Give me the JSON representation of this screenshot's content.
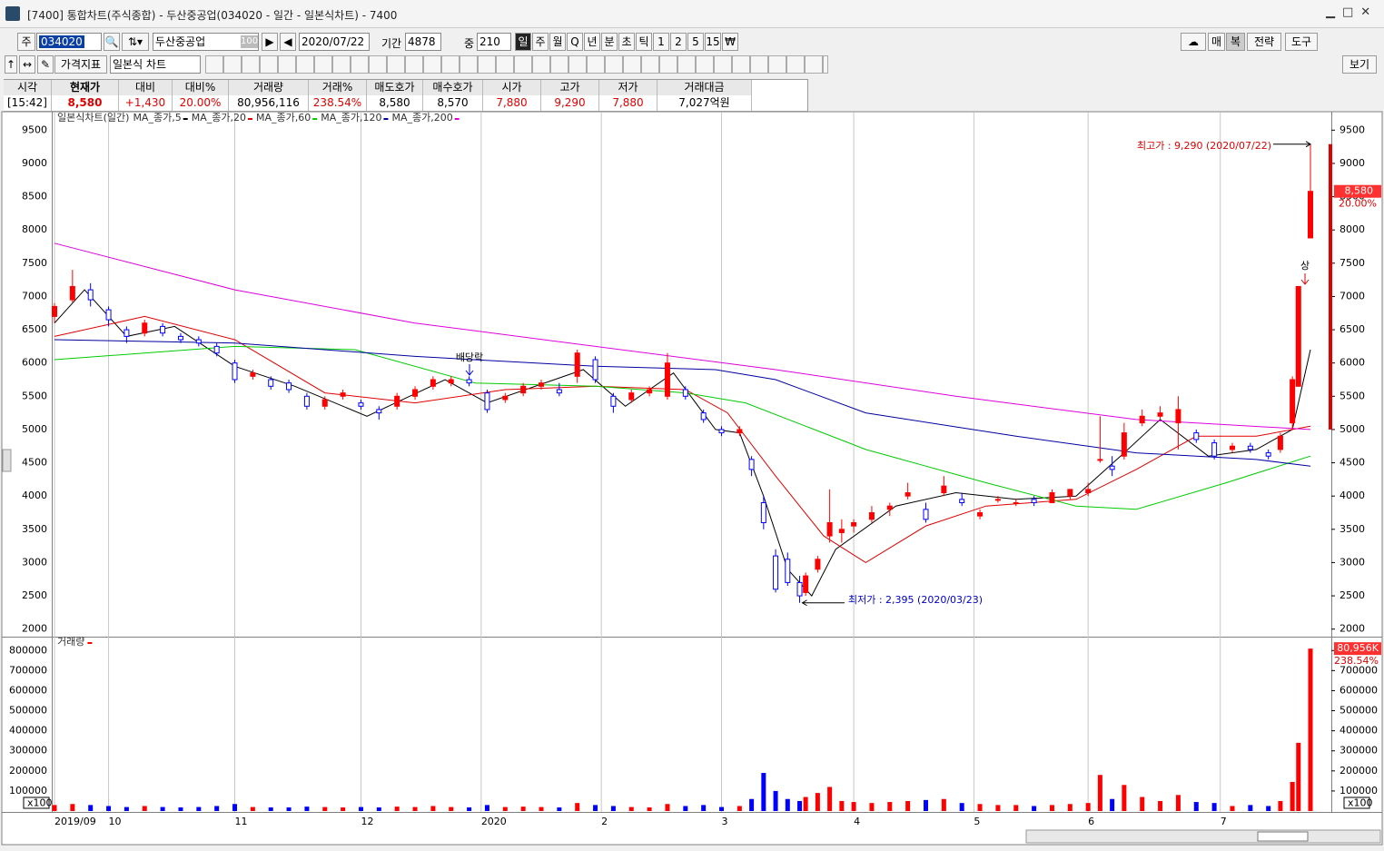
{
  "window": {
    "title": "[7400] 통합차트(주식종합) - 두산중공업(034020 - 일간 - 일본식차트) - 7400"
  },
  "toolbar": {
    "market": "주",
    "code": "034020",
    "name": "두산중공업",
    "zoom": "100",
    "date": "2020/07/22",
    "period_label": "기간",
    "period": "4878",
    "count_label": "중",
    "count": "210",
    "intervals": [
      "일",
      "주",
      "월",
      "Q",
      "년",
      "분",
      "초",
      "틱",
      "1",
      "2",
      "5",
      "15",
      "₩"
    ],
    "right_buttons": [
      "매",
      "복",
      "전략",
      "도구"
    ],
    "indicator_button": "가격지표",
    "chart_style": "일본식 차트",
    "view_button": "보기"
  },
  "quote": {
    "headers": [
      "시각",
      "현재가",
      "대비",
      "대비%",
      "거래량",
      "거래%",
      "매도호가",
      "매수호가",
      "시가",
      "고가",
      "저가",
      "거래대금"
    ],
    "values": [
      "[15:42]",
      "8,580",
      "+1,430",
      "20.00%",
      "80,956,116",
      "238.54%",
      "8,580",
      "8,570",
      "7,880",
      "9,290",
      "7,880",
      "7,027억원"
    ]
  },
  "chart_data": {
    "type": "candlestick",
    "title": "일본식차트(일간)",
    "xlim": [
      0,
      209
    ],
    "xticks": [
      {
        "value": 0,
        "label": "2019/09"
      },
      {
        "value": 9,
        "label": "10"
      },
      {
        "value": 30,
        "label": "11"
      },
      {
        "value": 51,
        "label": "12"
      },
      {
        "value": 71,
        "label": "2020"
      },
      {
        "value": 91,
        "label": "2"
      },
      {
        "value": 111,
        "label": "3"
      },
      {
        "value": 133,
        "label": "4"
      },
      {
        "value": 153,
        "label": "5"
      },
      {
        "value": 172,
        "label": "6"
      },
      {
        "value": 194,
        "label": "7"
      }
    ],
    "ylim": [
      1900,
      9750
    ],
    "yticks": [
      2000,
      2500,
      3000,
      3500,
      4000,
      4500,
      5000,
      5500,
      6000,
      6500,
      7000,
      7500,
      8000,
      8500,
      9000,
      9500
    ],
    "up_color": "#ff0000",
    "down_color": "#0000ff",
    "candles": {
      "x": [
        0,
        3,
        6,
        9,
        12,
        15,
        18,
        21,
        24,
        27,
        30,
        33,
        36,
        39,
        42,
        45,
        48,
        51,
        54,
        57,
        60,
        63,
        66,
        69,
        72,
        75,
        78,
        81,
        84,
        87,
        90,
        93,
        96,
        99,
        102,
        105,
        108,
        111,
        114,
        116,
        118,
        120,
        122,
        124,
        125,
        127,
        129,
        131,
        133,
        136,
        139,
        142,
        145,
        148,
        151,
        154,
        157,
        160,
        163,
        166,
        169,
        172,
        174,
        176,
        178,
        181,
        184,
        187,
        190,
        193,
        196,
        199,
        202,
        204,
        206,
        207,
        209
      ],
      "open": [
        6700,
        6950,
        7100,
        6800,
        6500,
        6450,
        6550,
        6400,
        6350,
        6250,
        6000,
        5800,
        5750,
        5700,
        5500,
        5350,
        5500,
        5400,
        5300,
        5350,
        5500,
        5650,
        5700,
        5750,
        5550,
        5450,
        5550,
        5650,
        5600,
        5800,
        6050,
        5500,
        5450,
        5550,
        5500,
        5600,
        5250,
        5000,
        4950,
        4550,
        3900,
        3100,
        3050,
        2700,
        2550,
        2900,
        3400,
        3450,
        3550,
        3650,
        3800,
        4000,
        3800,
        4050,
        3950,
        3700,
        3950,
        3900,
        3950,
        3900,
        4000,
        4050,
        4550,
        4450,
        4600,
        5100,
        5200,
        5100,
        4950,
        4800,
        4700,
        4750,
        4650,
        4700,
        5100,
        5650,
        7880
      ],
      "high": [
        6900,
        7400,
        7200,
        6850,
        6550,
        6650,
        6600,
        6450,
        6400,
        6300,
        6050,
        5900,
        5800,
        5750,
        5550,
        5500,
        5600,
        5450,
        5350,
        5550,
        5650,
        5800,
        5800,
        5800,
        5600,
        5550,
        5700,
        5750,
        5700,
        6200,
        6100,
        5550,
        5600,
        5650,
        6150,
        5650,
        5300,
        5050,
        5050,
        4600,
        4000,
        3200,
        3150,
        2800,
        2850,
        3100,
        4100,
        3650,
        3650,
        3850,
        3900,
        4200,
        3900,
        4300,
        4050,
        3800,
        4000,
        3950,
        4000,
        4100,
        4100,
        4200,
        5200,
        4600,
        5100,
        5300,
        5350,
        5500,
        5000,
        4850,
        4800,
        4800,
        4700,
        4950,
        5800,
        7150,
        9290
      ],
      "low": [
        6600,
        6900,
        6850,
        6550,
        6300,
        6400,
        6400,
        6300,
        6250,
        6100,
        5700,
        5750,
        5600,
        5550,
        5300,
        5300,
        5450,
        5300,
        5150,
        5300,
        5450,
        5600,
        5650,
        5650,
        5250,
        5400,
        5500,
        5600,
        5500,
        5700,
        5700,
        5250,
        5400,
        5500,
        5450,
        5450,
        5100,
        4900,
        4900,
        4300,
        3500,
        2550,
        2650,
        2395,
        2500,
        2850,
        3300,
        3300,
        3450,
        3600,
        3700,
        3950,
        3600,
        4000,
        3850,
        3650,
        3900,
        3850,
        3850,
        3900,
        3950,
        4000,
        4500,
        4300,
        4550,
        5050,
        5150,
        4700,
        4800,
        4550,
        4650,
        4650,
        4550,
        4650,
        5000,
        5650,
        7880
      ],
      "close": [
        6850,
        7150,
        6950,
        6650,
        6400,
        6600,
        6450,
        6350,
        6300,
        6150,
        5750,
        5850,
        5650,
        5600,
        5350,
        5450,
        5550,
        5350,
        5250,
        5500,
        5600,
        5750,
        5750,
        5700,
        5300,
        5500,
        5650,
        5700,
        5550,
        6150,
        5750,
        5350,
        5550,
        5600,
        6000,
        5500,
        5150,
        4950,
        5000,
        4400,
        3600,
        2600,
        2700,
        2500,
        2800,
        3050,
        3600,
        3500,
        3600,
        3750,
        3850,
        4050,
        3650,
        4150,
        3900,
        3750,
        3950,
        3900,
        3900,
        4050,
        4100,
        4100,
        4550,
        4400,
        4950,
        5200,
        5250,
        5300,
        4850,
        4600,
        4750,
        4700,
        4600,
        4900,
        5750,
        7150,
        8580
      ]
    },
    "moving_averages": [
      {
        "name": "MA_종가,5",
        "color": "#000000",
        "x": [
          0,
          5,
          12,
          20,
          30,
          40,
          52,
          65,
          72,
          88,
          95,
          103,
          110,
          114,
          118,
          122,
          126,
          130,
          140,
          150,
          160,
          170,
          178,
          184,
          192,
          200,
          206,
          209
        ],
        "values": [
          6600,
          7100,
          6400,
          6550,
          5950,
          5650,
          5200,
          5750,
          5400,
          5900,
          5350,
          5850,
          5000,
          4950,
          4000,
          2900,
          2500,
          3200,
          3850,
          4050,
          3950,
          4000,
          4650,
          5150,
          4600,
          4700,
          5000,
          6200
        ]
      },
      {
        "name": "MA_종가,20",
        "color": "#e00000",
        "x": [
          0,
          15,
          30,
          45,
          60,
          75,
          90,
          105,
          112,
          120,
          128,
          135,
          145,
          155,
          170,
          180,
          190,
          200,
          209
        ],
        "values": [
          6400,
          6700,
          6350,
          5550,
          5400,
          5600,
          5650,
          5600,
          5250,
          4300,
          3400,
          3000,
          3550,
          3850,
          3950,
          4400,
          4900,
          4900,
          5050
        ]
      },
      {
        "name": "MA_종가,60",
        "color": "#00cc00",
        "x": [
          0,
          30,
          50,
          70,
          90,
          105,
          115,
          135,
          155,
          170,
          180,
          195,
          209
        ],
        "values": [
          6050,
          6250,
          6200,
          5700,
          5650,
          5550,
          5400,
          4700,
          4200,
          3850,
          3800,
          4200,
          4600
        ]
      },
      {
        "name": "MA_종가,120",
        "color": "#0000a0",
        "x": [
          0,
          30,
          60,
          90,
          110,
          120,
          135,
          160,
          180,
          200,
          209
        ],
        "values": [
          6350,
          6300,
          6100,
          5950,
          5900,
          5750,
          5250,
          4900,
          4650,
          4550,
          4450
        ]
      },
      {
        "name": "MA_종가,200",
        "color": "#dd00dd",
        "x": [
          0,
          30,
          60,
          90,
          120,
          150,
          180,
          209
        ],
        "values": [
          7800,
          7100,
          6600,
          6250,
          5900,
          5500,
          5150,
          5000
        ]
      }
    ],
    "volume": {
      "title": "거래량",
      "color": "#ff0000",
      "unit_label": "x100",
      "ylim": [
        0,
        860000
      ],
      "yticks": [
        100000,
        200000,
        300000,
        400000,
        500000,
        600000,
        700000,
        800000
      ],
      "values": [
        30000,
        35000,
        30000,
        25000,
        20000,
        25000,
        20000,
        18000,
        20000,
        25000,
        35000,
        20000,
        18000,
        18000,
        22000,
        20000,
        18000,
        20000,
        18000,
        22000,
        20000,
        25000,
        20000,
        18000,
        30000,
        20000,
        22000,
        20000,
        18000,
        40000,
        30000,
        25000,
        20000,
        18000,
        35000,
        25000,
        30000,
        20000,
        25000,
        60000,
        190000,
        100000,
        60000,
        50000,
        70000,
        90000,
        120000,
        50000,
        45000,
        40000,
        45000,
        50000,
        55000,
        60000,
        40000,
        35000,
        30000,
        30000,
        25000,
        30000,
        35000,
        40000,
        180000,
        60000,
        130000,
        70000,
        50000,
        80000,
        45000,
        40000,
        25000,
        30000,
        25000,
        50000,
        145000,
        340000,
        809561
      ]
    },
    "annotations": {
      "high": "최고가 : 9,290 (2020/07/22)",
      "low": "최저가 : 2,395 (2020/03/23)",
      "dividend": "배당락",
      "limit_up": "상"
    },
    "last_price_label": "8,580",
    "last_change_label": "20.00%",
    "last_volume_label": "80,956K",
    "last_volume_pct_label": "238.54%"
  }
}
